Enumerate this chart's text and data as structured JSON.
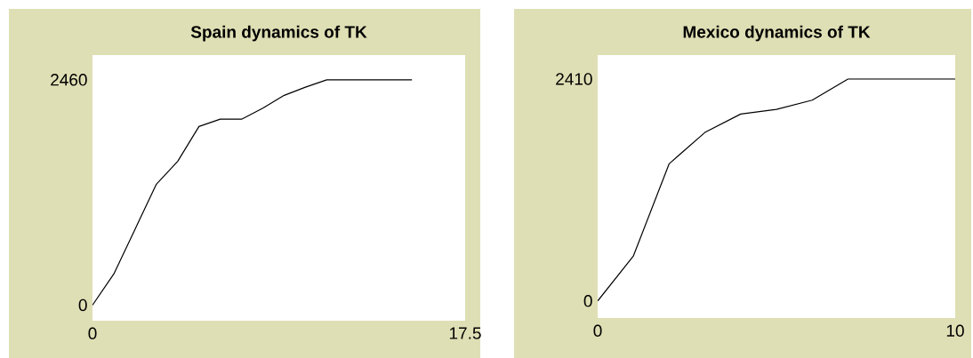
{
  "chart_data": [
    {
      "type": "line",
      "title": "Spain  dynamics of TK",
      "x": [
        0,
        1,
        2,
        3,
        4,
        5,
        6,
        7,
        8,
        9,
        10,
        11,
        12,
        13,
        14,
        15
      ],
      "series": [
        {
          "color": "#000000",
          "values": [
            0,
            340,
            830,
            1320,
            1570,
            1950,
            2030,
            2030,
            2150,
            2290,
            2380,
            2460,
            2460,
            2460,
            2460,
            2460
          ]
        }
      ],
      "xlim": [
        0,
        17.5
      ],
      "ylim": [
        -170,
        2730
      ],
      "xticks": [
        0,
        17.5
      ],
      "yticks": [
        0,
        2460
      ]
    },
    {
      "type": "line",
      "title": "Mexico dynamics of TK",
      "x": [
        0,
        1,
        2,
        3,
        4,
        5,
        6,
        7,
        8,
        9,
        10
      ],
      "series": [
        {
          "color": "#000000",
          "values": [
            0,
            490,
            1490,
            1830,
            2030,
            2080,
            2180,
            2410,
            2410,
            2410,
            2410
          ]
        }
      ],
      "xlim": [
        0,
        10
      ],
      "ylim": [
        -185,
        2670
      ],
      "xticks": [
        0,
        10
      ],
      "yticks": [
        0,
        2410
      ]
    }
  ]
}
